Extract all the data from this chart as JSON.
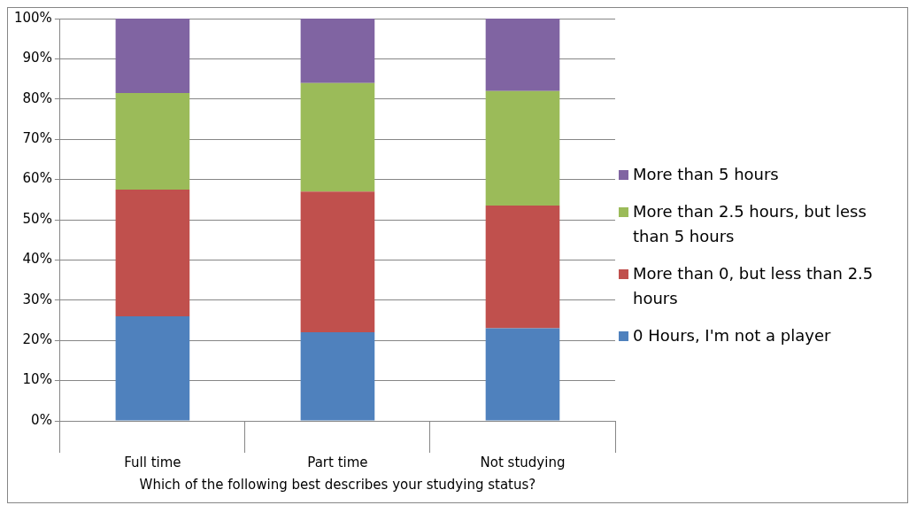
{
  "chart_data": {
    "type": "bar",
    "stacked": true,
    "xlabel": "Which of the following best describes your studying status?",
    "categories": [
      "Full time",
      "Part time",
      "Not studying"
    ],
    "series": [
      {
        "name": "0 Hours, I'm not a player",
        "color": "#4f81bd",
        "values": [
          26,
          22,
          23
        ]
      },
      {
        "name": "More than 0, but less than 2.5 hours",
        "color": "#c0504d",
        "values": [
          31.5,
          35,
          30.5
        ]
      },
      {
        "name": "More than 2.5 hours, but less than 5 hours",
        "color": "#9bbb59",
        "values": [
          24,
          27,
          28.5
        ]
      },
      {
        "name": "More than 5 hours",
        "color": "#8064a2",
        "values": [
          18.5,
          16,
          18
        ]
      }
    ],
    "ylim": [
      0,
      100
    ],
    "yticks": [
      {
        "value": 0,
        "label": "0%"
      },
      {
        "value": 10,
        "label": "10%"
      },
      {
        "value": 20,
        "label": "20%"
      },
      {
        "value": 30,
        "label": "30%"
      },
      {
        "value": 40,
        "label": "40%"
      },
      {
        "value": 50,
        "label": "50%"
      },
      {
        "value": 60,
        "label": "60%"
      },
      {
        "value": 70,
        "label": "70%"
      },
      {
        "value": 80,
        "label": "80%"
      },
      {
        "value": 90,
        "label": "90%"
      },
      {
        "value": 100,
        "label": "100%"
      }
    ],
    "grid": "y",
    "legend": "right"
  }
}
